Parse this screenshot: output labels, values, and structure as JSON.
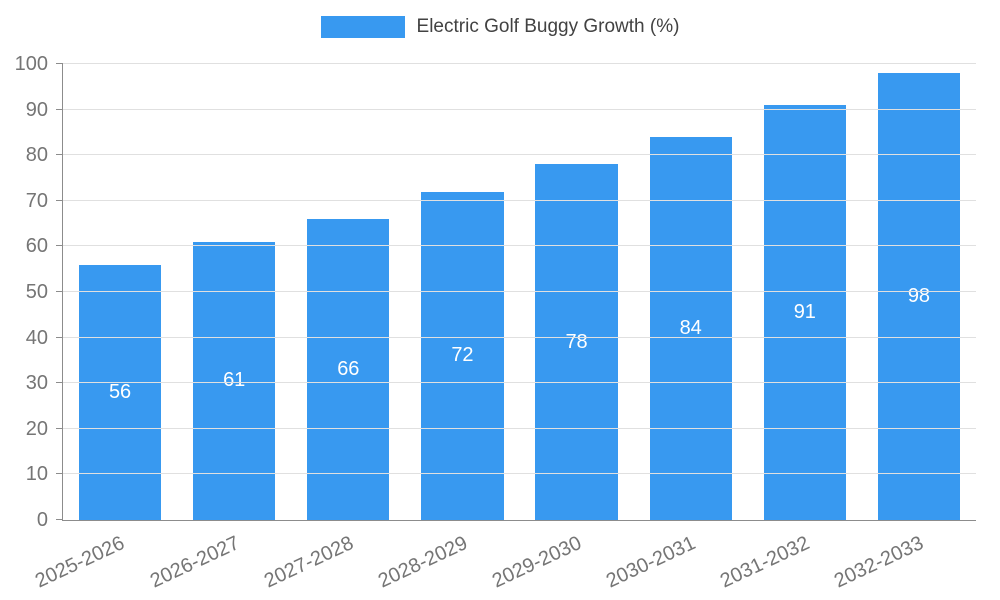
{
  "legend": {
    "label": "Electric Golf Buggy Growth (%)"
  },
  "chart_data": {
    "type": "bar",
    "title": "Electric Golf Buggy Growth (%)",
    "categories": [
      "2025-2026",
      "2026-2027",
      "2027-2028",
      "2028-2029",
      "2029-2030",
      "2030-2031",
      "2031-2032",
      "2032-2033"
    ],
    "values": [
      56,
      61,
      66,
      72,
      78,
      84,
      91,
      98
    ],
    "xlabel": "",
    "ylabel": "",
    "ylim": [
      0,
      100
    ],
    "ytick_step": 10,
    "grid": true,
    "legend_position": "top",
    "bar_color": "#3899f0",
    "value_label_color": "#ffffff",
    "grid_color": "#e0e0e0",
    "axis_color": "#8c8c8c",
    "tick_label_color": "#757575"
  }
}
